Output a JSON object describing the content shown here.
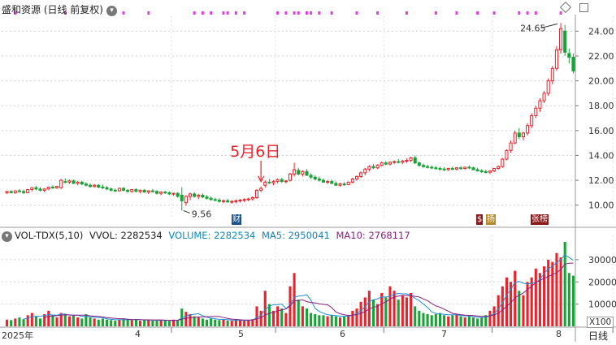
{
  "header": {
    "title": "盛和资源 (日线 前复权)",
    "chevron_icon": "chevron-down-icon"
  },
  "window_controls": {
    "restore_icon": "diamond-icon",
    "maximize_icon": "square-icon"
  },
  "price_annotations": {
    "high_label": "24.65",
    "low_label": "9.56",
    "callout_text": "5月6日"
  },
  "events": {
    "fin_badge": "财",
    "s_badge": "$",
    "yang_badge": "扬",
    "zhang_badge": "张榜"
  },
  "volume_header": {
    "name": "VOL-TDX(5,10)",
    "vvol": "VVOL: 2282534",
    "volume": "VOLUME: 2282534",
    "ma5": "MA5: 2950041",
    "ma10": "MA10: 2768117"
  },
  "volume_axis": {
    "unit": "X100",
    "period": "日线"
  },
  "x_axis": {
    "year_label": "2025年",
    "month_labels": [
      "4",
      "5",
      "6",
      "7",
      "8"
    ]
  },
  "colors": {
    "up": "#e8232b",
    "down": "#19a337",
    "ma5": "#1d8fd6",
    "ma10": "#8a1f82",
    "vol_label": "#0e8ac0",
    "magenta_dots": "#e040e0"
  },
  "chart_data": [
    {
      "type": "candlestick",
      "title": "盛和资源 (日线 前复权)",
      "y_axis_ticks": [
        "10.00",
        "12.00",
        "14.00",
        "16.00",
        "18.00",
        "20.00",
        "22.00",
        "24.00"
      ],
      "ylim": [
        9.0,
        25.2
      ],
      "x_month_ticks": [
        {
          "month": "4",
          "index": 40
        },
        {
          "month": "5",
          "index": 65
        },
        {
          "month": "6",
          "index": 91
        },
        {
          "month": "7",
          "index": 117
        },
        {
          "month": "8",
          "index": 146
        }
      ],
      "annotations": [
        {
          "label": "24.65",
          "type": "high"
        },
        {
          "label": "9.56",
          "type": "low"
        },
        {
          "label": "5月6日",
          "type": "callout"
        }
      ],
      "candles": [
        [
          11.0,
          11.15,
          10.9,
          11.1
        ],
        [
          11.1,
          11.2,
          10.95,
          11.0
        ],
        [
          11.0,
          11.2,
          10.9,
          11.15
        ],
        [
          11.15,
          11.3,
          11.0,
          11.1
        ],
        [
          11.1,
          11.25,
          10.9,
          11.0
        ],
        [
          11.0,
          11.3,
          10.95,
          11.25
        ],
        [
          11.25,
          11.45,
          11.1,
          11.4
        ],
        [
          11.4,
          11.55,
          11.2,
          11.3
        ],
        [
          11.3,
          11.45,
          11.1,
          11.2
        ],
        [
          11.2,
          11.35,
          11.05,
          11.3
        ],
        [
          11.3,
          11.5,
          11.2,
          11.45
        ],
        [
          11.45,
          11.6,
          11.3,
          11.4
        ],
        [
          11.4,
          11.55,
          11.3,
          11.5
        ],
        [
          11.4,
          12.1,
          11.3,
          12.0
        ],
        [
          11.9,
          12.15,
          11.75,
          11.85
        ],
        [
          11.85,
          12.05,
          11.7,
          11.95
        ],
        [
          11.95,
          12.05,
          11.7,
          11.75
        ],
        [
          11.75,
          11.95,
          11.6,
          11.85
        ],
        [
          11.85,
          11.95,
          11.6,
          11.7
        ],
        [
          11.7,
          11.85,
          11.5,
          11.6
        ],
        [
          11.6,
          11.75,
          11.4,
          11.5
        ],
        [
          11.5,
          11.7,
          11.4,
          11.6
        ],
        [
          11.6,
          11.7,
          11.35,
          11.45
        ],
        [
          11.45,
          11.65,
          11.3,
          11.4
        ],
        [
          11.4,
          11.55,
          11.2,
          11.3
        ],
        [
          11.3,
          11.4,
          11.1,
          11.2
        ],
        [
          11.2,
          11.35,
          11.05,
          11.15
        ],
        [
          11.15,
          11.4,
          11.1,
          11.35
        ],
        [
          11.35,
          11.45,
          11.1,
          11.2
        ],
        [
          11.2,
          11.3,
          11.0,
          11.1
        ],
        [
          11.1,
          11.3,
          11.0,
          11.25
        ],
        [
          11.25,
          11.35,
          11.05,
          11.1
        ],
        [
          11.1,
          11.25,
          10.95,
          11.2
        ],
        [
          11.2,
          11.3,
          11.0,
          11.05
        ],
        [
          11.05,
          11.2,
          10.9,
          11.15
        ],
        [
          11.15,
          11.3,
          11.0,
          11.1
        ],
        [
          11.1,
          11.2,
          10.85,
          10.95
        ],
        [
          10.95,
          11.1,
          10.8,
          11.05
        ],
        [
          11.05,
          11.15,
          10.9,
          11.0
        ],
        [
          11.0,
          11.1,
          10.8,
          10.9
        ],
        [
          10.9,
          11.0,
          10.75,
          10.95
        ],
        [
          10.95,
          11.05,
          10.6,
          10.7
        ],
        [
          10.8,
          11.45,
          9.56,
          10.35
        ],
        [
          10.2,
          10.8,
          9.95,
          10.7
        ],
        [
          10.7,
          11.0,
          10.4,
          10.9
        ],
        [
          10.9,
          11.05,
          10.6,
          10.7
        ],
        [
          10.7,
          10.9,
          10.5,
          10.8
        ],
        [
          10.8,
          10.95,
          10.55,
          10.65
        ],
        [
          10.65,
          10.8,
          10.45,
          10.55
        ],
        [
          10.55,
          10.7,
          10.35,
          10.45
        ],
        [
          10.45,
          10.6,
          10.3,
          10.4
        ],
        [
          10.4,
          10.55,
          10.2,
          10.3
        ],
        [
          10.3,
          10.45,
          10.15,
          10.35
        ],
        [
          10.35,
          10.5,
          10.2,
          10.25
        ],
        [
          10.25,
          10.4,
          10.1,
          10.3
        ],
        [
          10.3,
          10.45,
          10.15,
          10.35
        ],
        [
          10.35,
          10.5,
          10.2,
          10.4
        ],
        [
          10.4,
          10.55,
          10.25,
          10.45
        ],
        [
          10.45,
          10.6,
          10.3,
          10.5
        ],
        [
          10.5,
          10.7,
          10.35,
          10.6
        ],
        [
          10.6,
          11.3,
          10.5,
          11.2
        ],
        [
          11.2,
          11.5,
          11.05,
          11.35
        ],
        [
          11.6,
          12.0,
          11.4,
          11.85
        ],
        [
          11.85,
          12.1,
          11.7,
          11.8
        ],
        [
          11.8,
          12.0,
          11.6,
          11.9
        ],
        [
          11.9,
          12.15,
          11.75,
          12.05
        ],
        [
          12.05,
          12.2,
          11.8,
          11.9
        ],
        [
          11.9,
          12.0,
          11.75,
          11.95
        ],
        [
          12.0,
          12.6,
          11.9,
          12.5
        ],
        [
          12.5,
          13.4,
          12.3,
          12.85
        ],
        [
          12.8,
          13.0,
          12.4,
          12.5
        ],
        [
          12.5,
          12.8,
          12.3,
          12.7
        ],
        [
          12.7,
          12.9,
          12.35,
          12.4
        ],
        [
          12.4,
          12.55,
          12.1,
          12.25
        ],
        [
          12.25,
          12.4,
          12.0,
          12.1
        ],
        [
          12.1,
          12.3,
          11.9,
          12.0
        ],
        [
          12.0,
          12.15,
          11.8,
          11.85
        ],
        [
          11.85,
          12.0,
          11.7,
          11.9
        ],
        [
          11.9,
          12.05,
          11.7,
          11.75
        ],
        [
          11.75,
          11.9,
          11.55,
          11.6
        ],
        [
          11.6,
          11.8,
          11.5,
          11.7
        ],
        [
          11.7,
          11.85,
          11.55,
          11.65
        ],
        [
          11.65,
          11.9,
          11.6,
          11.85
        ],
        [
          11.85,
          12.2,
          11.75,
          12.1
        ],
        [
          12.1,
          12.4,
          11.95,
          12.3
        ],
        [
          12.3,
          12.7,
          12.2,
          12.6
        ],
        [
          12.6,
          13.0,
          12.4,
          12.9
        ],
        [
          12.9,
          13.2,
          12.7,
          13.1
        ],
        [
          13.1,
          13.3,
          12.9,
          13.0
        ],
        [
          13.0,
          13.3,
          12.9,
          13.2
        ],
        [
          13.2,
          13.5,
          13.1,
          13.4
        ],
        [
          13.4,
          13.55,
          13.2,
          13.3
        ],
        [
          13.3,
          13.5,
          13.2,
          13.45
        ],
        [
          13.45,
          13.6,
          13.3,
          13.5
        ],
        [
          13.5,
          13.7,
          13.35,
          13.45
        ],
        [
          13.45,
          13.65,
          13.3,
          13.55
        ],
        [
          13.55,
          13.75,
          13.4,
          13.6
        ],
        [
          13.6,
          13.9,
          13.45,
          13.8
        ],
        [
          13.8,
          14.0,
          13.3,
          13.4
        ],
        [
          13.4,
          13.5,
          13.1,
          13.2
        ],
        [
          13.2,
          13.35,
          13.0,
          13.1
        ],
        [
          13.1,
          13.25,
          12.95,
          13.05
        ],
        [
          13.05,
          13.2,
          12.9,
          13.0
        ],
        [
          13.0,
          13.15,
          12.85,
          12.95
        ],
        [
          12.95,
          13.1,
          12.8,
          12.9
        ],
        [
          12.9,
          13.05,
          12.75,
          12.85
        ],
        [
          12.85,
          13.0,
          12.75,
          12.95
        ],
        [
          12.95,
          13.1,
          12.8,
          12.9
        ],
        [
          12.9,
          13.05,
          12.8,
          13.0
        ],
        [
          13.0,
          13.15,
          12.85,
          12.95
        ],
        [
          12.95,
          13.1,
          12.85,
          13.05
        ],
        [
          13.05,
          13.2,
          12.9,
          13.0
        ],
        [
          13.0,
          13.1,
          12.8,
          12.85
        ],
        [
          12.85,
          13.0,
          12.7,
          12.75
        ],
        [
          12.75,
          12.9,
          12.6,
          12.7
        ],
        [
          12.7,
          12.85,
          12.55,
          12.65
        ],
        [
          12.65,
          12.8,
          12.5,
          12.75
        ],
        [
          12.75,
          13.0,
          12.65,
          12.95
        ],
        [
          12.95,
          13.2,
          12.85,
          13.1
        ],
        [
          13.1,
          13.8,
          13.0,
          13.7
        ],
        [
          13.7,
          14.5,
          13.6,
          14.4
        ],
        [
          14.4,
          15.2,
          14.2,
          15.0
        ],
        [
          15.0,
          16.0,
          14.9,
          15.8
        ],
        [
          15.8,
          16.2,
          15.3,
          15.5
        ],
        [
          15.5,
          15.9,
          15.2,
          15.8
        ],
        [
          15.8,
          16.6,
          15.6,
          16.4
        ],
        [
          16.4,
          17.4,
          16.2,
          17.2
        ],
        [
          17.2,
          18.0,
          17.0,
          17.8
        ],
        [
          17.8,
          18.6,
          17.5,
          18.4
        ],
        [
          18.4,
          19.2,
          18.2,
          19.0
        ],
        [
          19.0,
          20.2,
          18.8,
          20.0
        ],
        [
          20.0,
          21.2,
          19.7,
          21.0
        ],
        [
          21.0,
          22.8,
          20.8,
          22.5
        ],
        [
          22.5,
          24.65,
          22.2,
          24.2
        ],
        [
          24.0,
          24.5,
          22.0,
          22.3
        ],
        [
          22.2,
          22.6,
          21.4,
          21.9
        ],
        [
          21.9,
          22.2,
          20.6,
          20.8
        ]
      ]
    },
    {
      "type": "bar",
      "title": "VOL-TDX(5,10)",
      "unit": "X100",
      "y_axis_ticks": [
        "10000",
        "20000",
        "30000"
      ],
      "ylim": [
        0,
        38000
      ],
      "series": [
        {
          "name": "VOLUME",
          "values": [
            3000,
            2800,
            3500,
            4000,
            3200,
            5000,
            6000,
            4500,
            3500,
            5500,
            7000,
            5000,
            4000,
            6000,
            5500,
            4500,
            5000,
            4000,
            3500,
            5500,
            4000,
            3500,
            3000,
            3500,
            3000,
            2800,
            2500,
            3000,
            3500,
            3000,
            2800,
            3200,
            2500,
            2800,
            3000,
            2600,
            2500,
            2800,
            2600,
            2400,
            3000,
            2800,
            8000,
            6500,
            5500,
            4500,
            4000,
            3500,
            3000,
            3500,
            3000,
            2800,
            3200,
            2600,
            2500,
            2800,
            2600,
            2500,
            2800,
            3200,
            9000,
            7000,
            16000,
            10000,
            7000,
            9000,
            8000,
            6000,
            18000,
            24000,
            12000,
            9000,
            8000,
            6000,
            5500,
            5000,
            5000,
            4500,
            5000,
            4500,
            4000,
            4500,
            5000,
            7000,
            8000,
            11000,
            13000,
            16000,
            12000,
            10000,
            15000,
            13000,
            18000,
            16000,
            12000,
            14000,
            13000,
            15000,
            9000,
            7000,
            6000,
            5500,
            5000,
            5500,
            6000,
            5000,
            4500,
            5000,
            5500,
            4500,
            4000,
            4500,
            4000,
            3500,
            4000,
            5000,
            7000,
            9000,
            14000,
            18000,
            22000,
            20000,
            25000,
            16000,
            14000,
            20000,
            22000,
            26000,
            24000,
            27000,
            30000,
            29000,
            33000,
            31000,
            38000,
            24000,
            22800
          ]
        },
        {
          "name": "MA5"
        },
        {
          "name": "MA10"
        }
      ]
    }
  ]
}
